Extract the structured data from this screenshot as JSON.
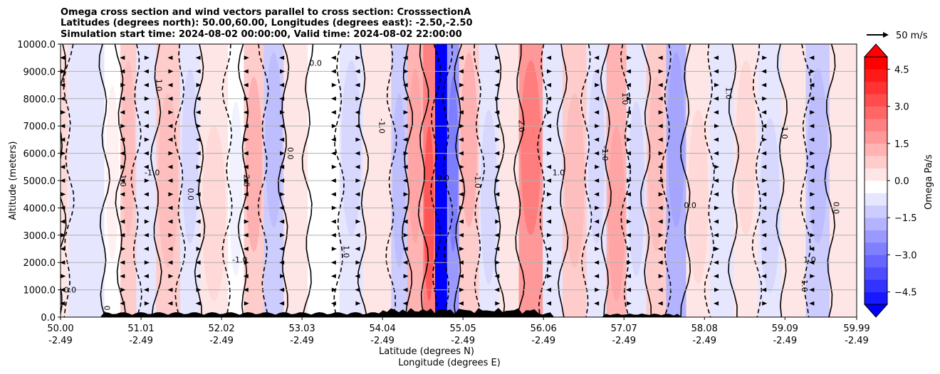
{
  "chart_data": {
    "type": "heatmap",
    "title_lines": [
      "Omega cross section and wind vectors parallel to cross section: CrosssectionA",
      "Latitudes (degrees north): 50.00,60.00, Longitudes (degrees east): -2.50,-2.50",
      "Simulation start time: 2024-08-02 00:00:00, Valid time: 2024-08-02 22:00:00"
    ],
    "ylabel": "Altitude (meters)",
    "xlabel_lat": "Latitude (degrees N)",
    "xlabel_lon": "Longitude (degrees E)",
    "xlim": [
      50.0,
      59.99
    ],
    "ylim": [
      0,
      10000
    ],
    "x_ticks": [
      {
        "lat": "50.00",
        "lon": "-2.49",
        "v": 50.0
      },
      {
        "lat": "51.01",
        "lon": "-2.49",
        "v": 51.01
      },
      {
        "lat": "52.02",
        "lon": "-2.49",
        "v": 52.02
      },
      {
        "lat": "53.03",
        "lon": "-2.49",
        "v": 53.03
      },
      {
        "lat": "54.04",
        "lon": "-2.49",
        "v": 54.04
      },
      {
        "lat": "55.05",
        "lon": "-2.49",
        "v": 55.05
      },
      {
        "lat": "56.06",
        "lon": "-2.49",
        "v": 56.06
      },
      {
        "lat": "57.07",
        "lon": "-2.49",
        "v": 57.07
      },
      {
        "lat": "58.08",
        "lon": "-2.49",
        "v": 58.08
      },
      {
        "lat": "59.09",
        "lon": "-2.49",
        "v": 59.09
      },
      {
        "lat": "59.99",
        "lon": "-2.49",
        "v": 59.99
      }
    ],
    "y_ticks": [
      {
        "label": "10000.0",
        "v": 10000
      },
      {
        "label": "9000.0",
        "v": 9000
      },
      {
        "label": "8000.0",
        "v": 8000
      },
      {
        "label": "7000.0",
        "v": 7000
      },
      {
        "label": "6000.0",
        "v": 6000
      },
      {
        "label": "5000.0",
        "v": 5000
      },
      {
        "label": "4000.0",
        "v": 4000
      },
      {
        "label": "3000.0",
        "v": 3000
      },
      {
        "label": "2000.0",
        "v": 2000
      },
      {
        "label": "1000.0",
        "v": 1000
      },
      {
        "label": "0.0",
        "v": 0
      }
    ],
    "grid": true,
    "colorbar": {
      "label": "Omega Pa/s",
      "range": [
        -5,
        5
      ],
      "ticks": [
        {
          "label": "4.5",
          "v": 4.5
        },
        {
          "label": "3.0",
          "v": 3.0
        },
        {
          "label": "1.5",
          "v": 1.5
        },
        {
          "label": "0.0",
          "v": 0.0
        },
        {
          "label": "−1.5",
          "v": -1.5
        },
        {
          "label": "−3.0",
          "v": -3.0
        },
        {
          "label": "−4.5",
          "v": -4.5
        }
      ],
      "extend": "both",
      "colormap": "bwr"
    },
    "quiver_key": {
      "label": "50 m/s",
      "magnitude": 50
    },
    "omega_bands": [
      {
        "x0": 50.0,
        "x1": 50.1,
        "value": 0.6
      },
      {
        "x0": 50.1,
        "x1": 50.55,
        "value": -0.3
      },
      {
        "x0": 50.55,
        "x1": 50.75,
        "value": 0.2
      },
      {
        "x0": 50.75,
        "x1": 50.95,
        "value": 0.8
      },
      {
        "x0": 50.95,
        "x1": 51.2,
        "value": -0.4
      },
      {
        "x0": 51.2,
        "x1": 51.5,
        "value": 0.9
      },
      {
        "x0": 51.5,
        "x1": 51.75,
        "value": -0.6
      },
      {
        "x0": 51.75,
        "x1": 52.1,
        "value": 0.7
      },
      {
        "x0": 52.1,
        "x1": 52.3,
        "value": -0.2
      },
      {
        "x0": 52.3,
        "x1": 52.55,
        "value": 1.1
      },
      {
        "x0": 52.55,
        "x1": 52.8,
        "value": -0.9
      },
      {
        "x0": 52.8,
        "x1": 53.1,
        "value": 0.3
      },
      {
        "x0": 53.1,
        "x1": 53.5,
        "value": 0.1
      },
      {
        "x0": 53.5,
        "x1": 53.8,
        "value": -0.5
      },
      {
        "x0": 53.8,
        "x1": 54.15,
        "value": 0.4
      },
      {
        "x0": 54.15,
        "x1": 54.35,
        "value": -0.8
      },
      {
        "x0": 54.35,
        "x1": 54.55,
        "value": 1.4
      },
      {
        "x0": 54.55,
        "x1": 54.7,
        "value": 2.5
      },
      {
        "x0": 54.7,
        "x1": 54.85,
        "value": -5.0
      },
      {
        "x0": 54.85,
        "x1": 55.0,
        "value": -1.8
      },
      {
        "x0": 55.0,
        "x1": 55.25,
        "value": 1.2
      },
      {
        "x0": 55.25,
        "x1": 55.5,
        "value": -0.7
      },
      {
        "x0": 55.5,
        "x1": 55.75,
        "value": 0.3
      },
      {
        "x0": 55.75,
        "x1": 56.05,
        "value": 1.8
      },
      {
        "x0": 56.05,
        "x1": 56.3,
        "value": -0.3
      },
      {
        "x0": 56.3,
        "x1": 56.6,
        "value": 0.8
      },
      {
        "x0": 56.6,
        "x1": 56.85,
        "value": -0.6
      },
      {
        "x0": 56.85,
        "x1": 57.1,
        "value": 1.3
      },
      {
        "x0": 57.1,
        "x1": 57.35,
        "value": -0.5
      },
      {
        "x0": 57.35,
        "x1": 57.6,
        "value": 0.9
      },
      {
        "x0": 57.6,
        "x1": 57.85,
        "value": -1.4
      },
      {
        "x0": 57.85,
        "x1": 58.15,
        "value": 0.5
      },
      {
        "x0": 58.15,
        "x1": 58.45,
        "value": -0.4
      },
      {
        "x0": 58.45,
        "x1": 58.75,
        "value": 0.7
      },
      {
        "x0": 58.75,
        "x1": 59.05,
        "value": -0.6
      },
      {
        "x0": 59.05,
        "x1": 59.35,
        "value": 0.4
      },
      {
        "x0": 59.35,
        "x1": 59.65,
        "value": -0.9
      },
      {
        "x0": 59.65,
        "x1": 59.99,
        "value": 0.3
      }
    ],
    "contour_label_samples": [
      {
        "text": "0.0",
        "x": 50.12,
        "y": 900
      },
      {
        "text": "1.0",
        "x": 50.75,
        "y": 5000
      },
      {
        "text": "0.0",
        "x": 50.55,
        "y": 200
      },
      {
        "text": "-1.0",
        "x": 51.15,
        "y": 5200
      },
      {
        "text": "1.0",
        "x": 51.2,
        "y": 8500
      },
      {
        "text": "0.0",
        "x": 51.6,
        "y": 4500
      },
      {
        "text": "-1.0",
        "x": 52.25,
        "y": 2000
      },
      {
        "text": "2.0",
        "x": 52.3,
        "y": 5000
      },
      {
        "text": "0.0",
        "x": 52.85,
        "y": 6000
      },
      {
        "text": "0.0",
        "x": 53.2,
        "y": 9200
      },
      {
        "text": "1.0",
        "x": 53.55,
        "y": 2400
      },
      {
        "text": "-1.0",
        "x": 54.0,
        "y": 7000
      },
      {
        "text": "0.0",
        "x": 54.8,
        "y": 5000
      },
      {
        "text": "-1.0",
        "x": 55.2,
        "y": 5000
      },
      {
        "text": "2.0",
        "x": 55.75,
        "y": 7000
      },
      {
        "text": "1.0",
        "x": 56.25,
        "y": 5200
      },
      {
        "text": "-1.0",
        "x": 56.8,
        "y": 6000
      },
      {
        "text": "1.0",
        "x": 57.05,
        "y": 8000
      },
      {
        "text": "0.0",
        "x": 57.9,
        "y": 4000
      },
      {
        "text": "1.0",
        "x": 58.35,
        "y": 8200
      },
      {
        "text": "-1.0",
        "x": 59.05,
        "y": 6800
      },
      {
        "text": "1.0",
        "x": 59.4,
        "y": 2000
      },
      {
        "text": "-1.0",
        "x": 59.3,
        "y": 1200
      },
      {
        "text": "0.0",
        "x": 59.7,
        "y": 4000
      }
    ]
  }
}
